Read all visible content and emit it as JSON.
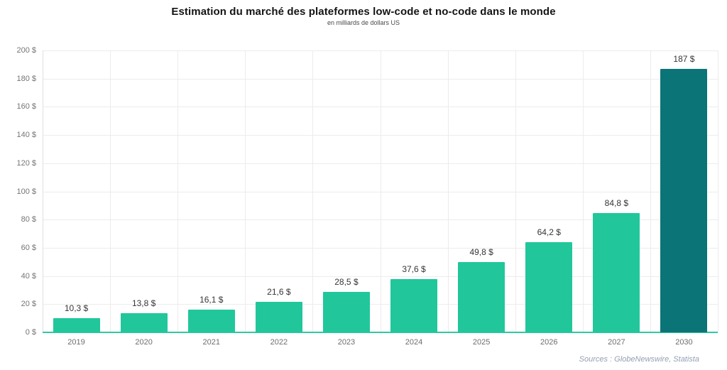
{
  "page": {
    "title": "Estimation du marché des plateformes low-code et no-code dans le monde",
    "subtitle": "en milliards de dollars US",
    "source_note": "Sources : GlobeNewswire, Statista"
  },
  "chart_data": {
    "type": "bar",
    "title": "Estimation du marché des plateformes low-code et no-code dans le monde",
    "subtitle": "en milliards de dollars US",
    "categories": [
      "2019",
      "2020",
      "2021",
      "2022",
      "2023",
      "2024",
      "2025",
      "2026",
      "2027",
      "2030"
    ],
    "values": [
      10.3,
      13.8,
      16.1,
      21.6,
      28.5,
      37.6,
      49.8,
      64.2,
      84.8,
      187
    ],
    "value_labels": [
      "10,3 $",
      "13,8 $",
      "16,1 $",
      "21,6 $",
      "28,5 $",
      "37,6 $",
      "49,8 $",
      "64,2 $",
      "84,8 $",
      "187 $"
    ],
    "xlabel": "",
    "ylabel": "",
    "ylim": [
      0,
      200
    ],
    "ytick_step": 20,
    "ytick_labels": [
      "0 $",
      "20 $",
      "40 $",
      "60 $",
      "80 $",
      "100 $",
      "120 $",
      "140 $",
      "160 $",
      "180 $",
      "200 $"
    ],
    "grid": true,
    "legend": "none",
    "bar_color": "#21c79b",
    "highlight_color": "#0b7477",
    "highlight_index": 9,
    "baseline_color": "#2fc9a1",
    "source_note": "Sources : GlobeNewswire, Statista"
  }
}
